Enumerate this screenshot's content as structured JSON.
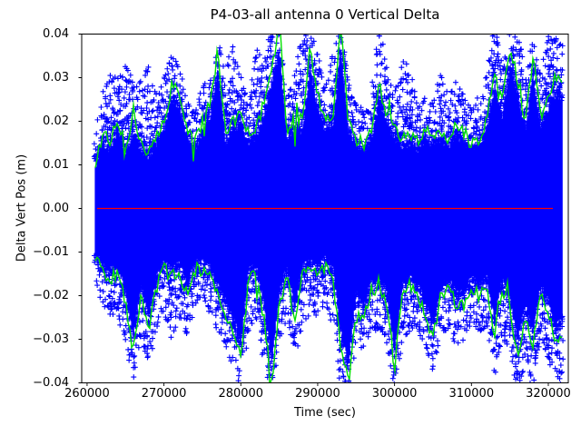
{
  "figure": {
    "background": "#ffffff",
    "axes_edge_color": "#000000",
    "text_color": "#000000"
  },
  "chart_data": {
    "type": "scatter",
    "title": "P4-03-all antenna 0 Vertical Delta",
    "xlabel": "Time (sec)",
    "ylabel": "Delta Vert Pos (m)",
    "xlim": [
      259300,
      322600
    ],
    "ylim": [
      -0.04,
      0.04
    ],
    "x_ticks": [
      260000,
      270000,
      280000,
      290000,
      300000,
      310000,
      320000
    ],
    "x_tick_labels": [
      "260000",
      "270000",
      "280000",
      "290000",
      "300000",
      "310000",
      "320000"
    ],
    "y_ticks": [
      0.04,
      0.03,
      0.02,
      0.01,
      0.0,
      -0.01,
      -0.02,
      -0.03,
      -0.04
    ],
    "y_tick_labels": [
      "0.04",
      "0.03",
      "0.02",
      "0.01",
      "0.00",
      "−0.01",
      "−0.02",
      "−0.03",
      "−0.04"
    ],
    "grid": false,
    "legend": null,
    "colors": {
      "scatter": "#0000ff",
      "smoothed_line": "#00e000",
      "reference_line": "#ff0000"
    },
    "sample_times": [
      261000,
      262000,
      263000,
      264000,
      265000,
      266000,
      267000,
      268000,
      269000,
      270000,
      271000,
      272000,
      273000,
      274000,
      275000,
      276000,
      277000,
      278000,
      279000,
      280000,
      281000,
      282000,
      283000,
      284000,
      285000,
      286000,
      287000,
      288000,
      289000,
      290000,
      291000,
      292000,
      293000,
      294000,
      295000,
      296000,
      297000,
      298000,
      299000,
      300000,
      301000,
      302000,
      303000,
      304000,
      305000,
      306000,
      307000,
      308000,
      309000,
      310000,
      311000,
      312000,
      313000,
      314000,
      315000,
      316000,
      317000,
      318000,
      319000,
      320000,
      321000,
      321800
    ],
    "series": [
      {
        "name": "vertical-delta-scatter",
        "type": "scatter",
        "marker": "+",
        "color": "#0000ff",
        "upper_envelope": [
          0.018,
          0.028,
          0.031,
          0.03,
          0.034,
          0.028,
          0.03,
          0.034,
          0.026,
          0.03,
          0.035,
          0.033,
          0.025,
          0.022,
          0.028,
          0.03,
          0.038,
          0.032,
          0.038,
          0.03,
          0.025,
          0.038,
          0.032,
          0.042,
          0.04,
          0.026,
          0.03,
          0.042,
          0.042,
          0.035,
          0.028,
          0.036,
          0.042,
          0.03,
          0.025,
          0.022,
          0.026,
          0.042,
          0.031,
          0.027,
          0.035,
          0.035,
          0.023,
          0.026,
          0.024,
          0.031,
          0.026,
          0.03,
          0.026,
          0.023,
          0.026,
          0.031,
          0.042,
          0.035,
          0.042,
          0.042,
          0.03,
          0.04,
          0.031,
          0.04,
          0.04,
          0.038
        ],
        "lower_envelope": [
          -0.016,
          -0.022,
          -0.025,
          -0.025,
          -0.03,
          -0.04,
          -0.03,
          -0.035,
          -0.028,
          -0.024,
          -0.03,
          -0.025,
          -0.03,
          -0.022,
          -0.02,
          -0.024,
          -0.028,
          -0.032,
          -0.036,
          -0.042,
          -0.028,
          -0.025,
          -0.036,
          -0.042,
          -0.03,
          -0.025,
          -0.033,
          -0.028,
          -0.024,
          -0.025,
          -0.022,
          -0.028,
          -0.042,
          -0.042,
          -0.03,
          -0.033,
          -0.028,
          -0.028,
          -0.03,
          -0.042,
          -0.031,
          -0.028,
          -0.028,
          -0.032,
          -0.038,
          -0.03,
          -0.028,
          -0.032,
          -0.03,
          -0.026,
          -0.028,
          -0.028,
          -0.038,
          -0.03,
          -0.032,
          -0.042,
          -0.035,
          -0.042,
          -0.03,
          -0.035,
          -0.038,
          -0.042
        ],
        "dense_core_fraction": 0.88
      },
      {
        "name": "upper-smoothed-line",
        "type": "line",
        "color": "#00e000",
        "values": [
          0.01,
          0.017,
          0.015,
          0.021,
          0.014,
          0.02,
          0.015,
          0.013,
          0.017,
          0.02,
          0.028,
          0.026,
          0.018,
          0.015,
          0.02,
          0.024,
          0.036,
          0.017,
          0.02,
          0.022,
          0.017,
          0.018,
          0.024,
          0.032,
          0.041,
          0.018,
          0.021,
          0.02,
          0.036,
          0.026,
          0.02,
          0.022,
          0.041,
          0.02,
          0.016,
          0.015,
          0.018,
          0.028,
          0.022,
          0.018,
          0.016,
          0.017,
          0.015,
          0.018,
          0.016,
          0.018,
          0.016,
          0.019,
          0.017,
          0.015,
          0.016,
          0.02,
          0.032,
          0.024,
          0.037,
          0.03,
          0.02,
          0.035,
          0.021,
          0.026,
          0.03,
          0.028
        ]
      },
      {
        "name": "lower-smoothed-line",
        "type": "line",
        "color": "#00e000",
        "values": [
          -0.012,
          -0.014,
          -0.016,
          -0.015,
          -0.022,
          -0.033,
          -0.02,
          -0.028,
          -0.018,
          -0.014,
          -0.016,
          -0.014,
          -0.02,
          -0.014,
          -0.014,
          -0.015,
          -0.02,
          -0.024,
          -0.028,
          -0.035,
          -0.016,
          -0.015,
          -0.025,
          -0.04,
          -0.022,
          -0.015,
          -0.026,
          -0.015,
          -0.014,
          -0.015,
          -0.013,
          -0.016,
          -0.032,
          -0.04,
          -0.022,
          -0.026,
          -0.018,
          -0.019,
          -0.021,
          -0.037,
          -0.02,
          -0.018,
          -0.02,
          -0.024,
          -0.03,
          -0.02,
          -0.018,
          -0.022,
          -0.022,
          -0.018,
          -0.02,
          -0.018,
          -0.029,
          -0.018,
          -0.023,
          -0.034,
          -0.025,
          -0.032,
          -0.02,
          -0.024,
          -0.031,
          -0.028
        ]
      },
      {
        "name": "zero-reference-line",
        "type": "hline",
        "color": "#ff0000",
        "y": 0.0,
        "t_start": 261300,
        "t_end": 320600
      }
    ]
  }
}
